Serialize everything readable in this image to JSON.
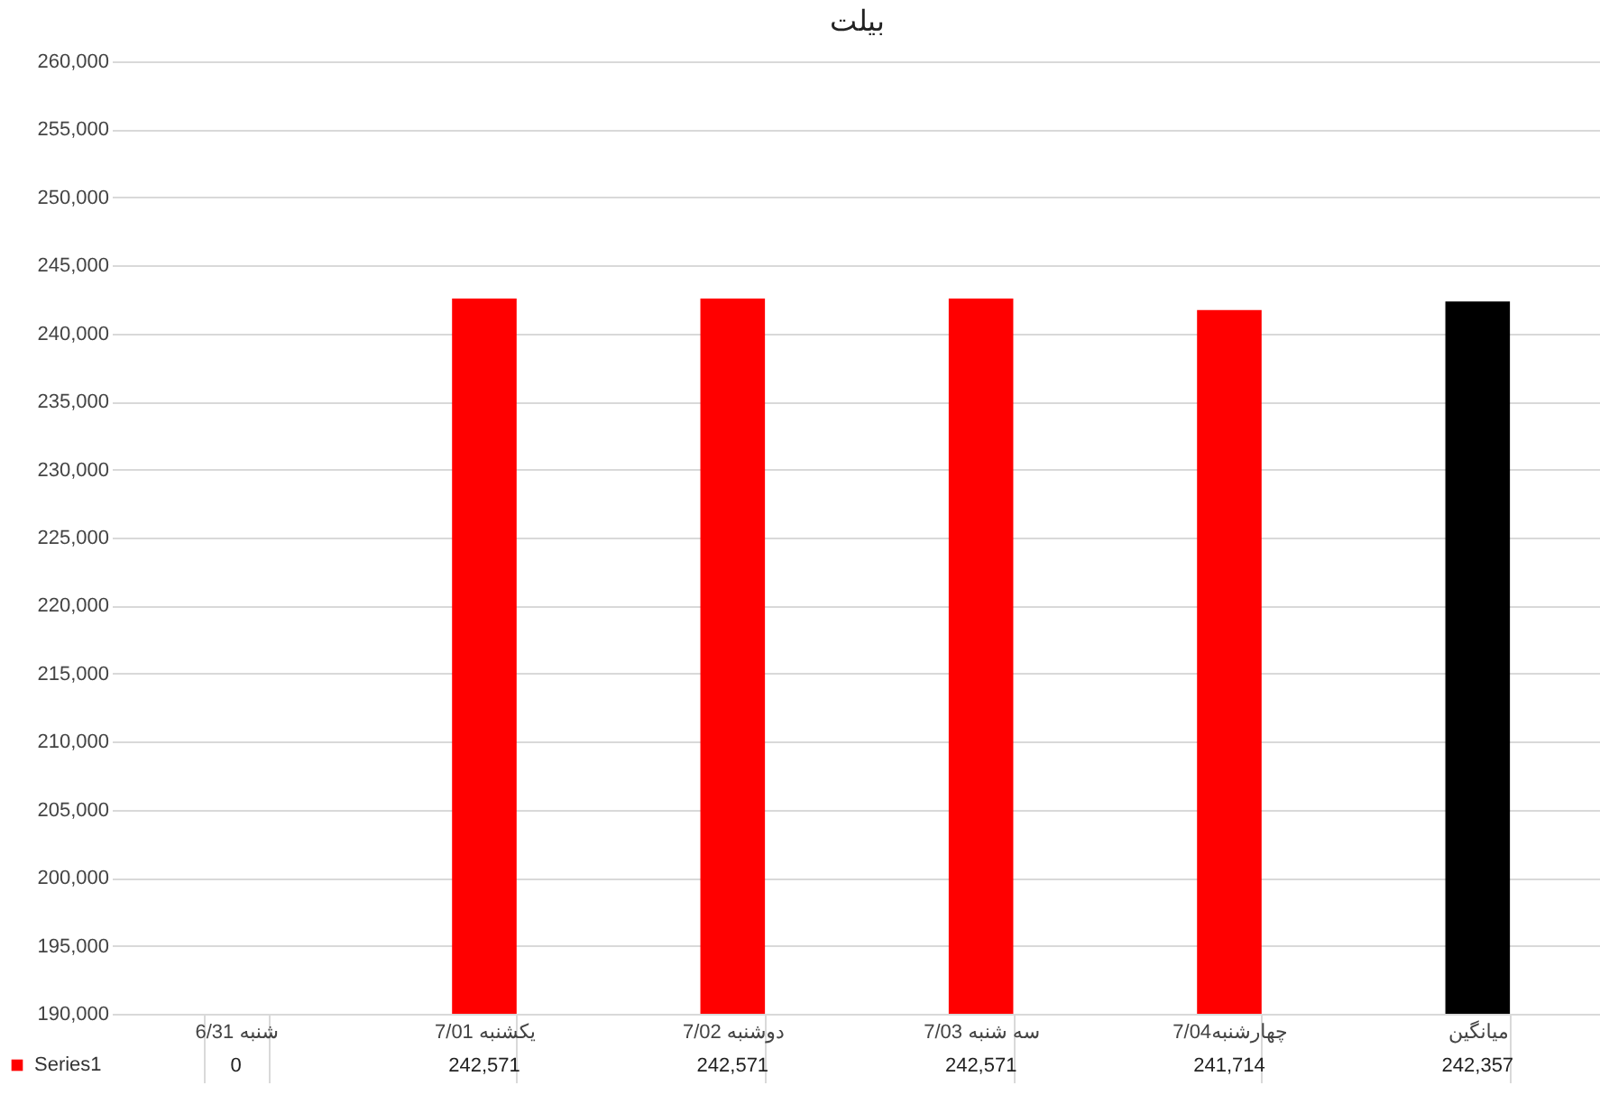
{
  "chart_data": {
    "type": "bar",
    "title": "بیلت",
    "categories": [
      "شنبه 6/31",
      "یکشنبه 7/01",
      "دوشنبه 7/02",
      "سه شنبه 7/03",
      "چهارشنبه7/04",
      "میانگین"
    ],
    "series": [
      {
        "name": "Series1",
        "color": "#ff0000",
        "colors": [
          "#ff0000",
          "#ff0000",
          "#ff0000",
          "#ff0000",
          "#ff0000",
          "#000000"
        ],
        "values": [
          null,
          242571,
          242571,
          242571,
          241714,
          242357
        ],
        "value_labels": [
          "0",
          "242,571",
          "242,571",
          "242,571",
          "241,714",
          "242,357"
        ]
      }
    ],
    "ylim": [
      190000,
      260000
    ],
    "yticks": [
      {
        "value": 190000,
        "label": "190,000"
      },
      {
        "value": 195000,
        "label": "195,000"
      },
      {
        "value": 200000,
        "label": "200,000"
      },
      {
        "value": 205000,
        "label": "205,000"
      },
      {
        "value": 210000,
        "label": "210,000"
      },
      {
        "value": 215000,
        "label": "215,000"
      },
      {
        "value": 220000,
        "label": "220,000"
      },
      {
        "value": 225000,
        "label": "225,000"
      },
      {
        "value": 230000,
        "label": "230,000"
      },
      {
        "value": 235000,
        "label": "235,000"
      },
      {
        "value": 240000,
        "label": "240,000"
      },
      {
        "value": 245000,
        "label": "245,000"
      },
      {
        "value": 250000,
        "label": "250,000"
      },
      {
        "value": 255000,
        "label": "255,000"
      },
      {
        "value": 260000,
        "label": "260,000"
      }
    ],
    "grid": "y",
    "legend": "bottom left"
  }
}
